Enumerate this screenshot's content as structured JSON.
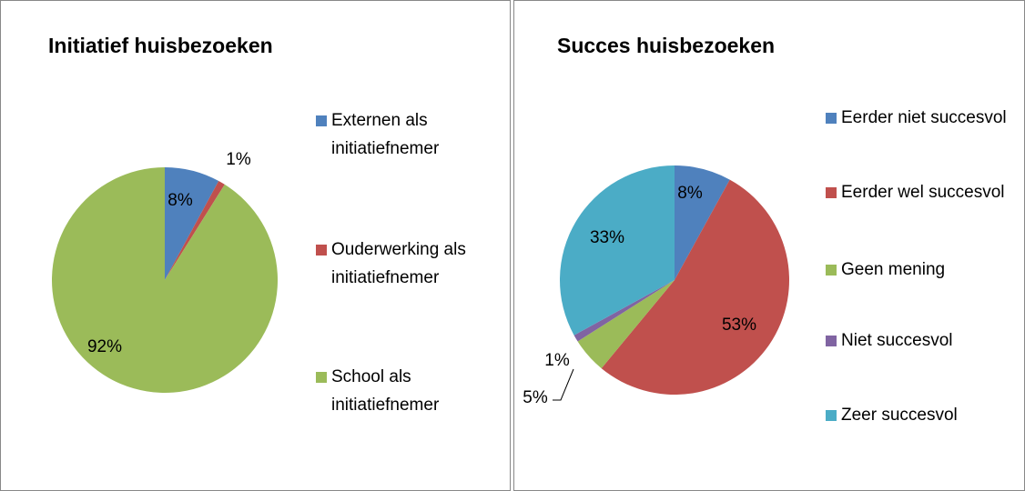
{
  "chart_data": [
    {
      "type": "pie",
      "title": "Initiatief huisbezoeken",
      "categories": [
        "Externen als initiatiefnemer",
        "Ouderwerking als initiatiefnemer",
        "School als initiatiefnemer"
      ],
      "values": [
        8,
        1,
        92
      ],
      "value_labels": [
        "8%",
        "1%",
        "92%"
      ],
      "colors": [
        "#4F81BD",
        "#C0504D",
        "#9BBB59"
      ],
      "legend": "right"
    },
    {
      "type": "pie",
      "title": "Succes huisbezoeken",
      "categories": [
        "Eerder niet succesvol",
        "Eerder wel succesvol",
        "Geen mening",
        "Niet succesvol",
        "Zeer succesvol"
      ],
      "values": [
        8,
        53,
        5,
        1,
        33
      ],
      "value_labels": [
        "8%",
        "53%",
        "5%",
        "1%",
        "33%"
      ],
      "colors": [
        "#4F81BD",
        "#C0504D",
        "#9BBB59",
        "#8064A2",
        "#4BACC6"
      ],
      "legend": "right"
    }
  ]
}
